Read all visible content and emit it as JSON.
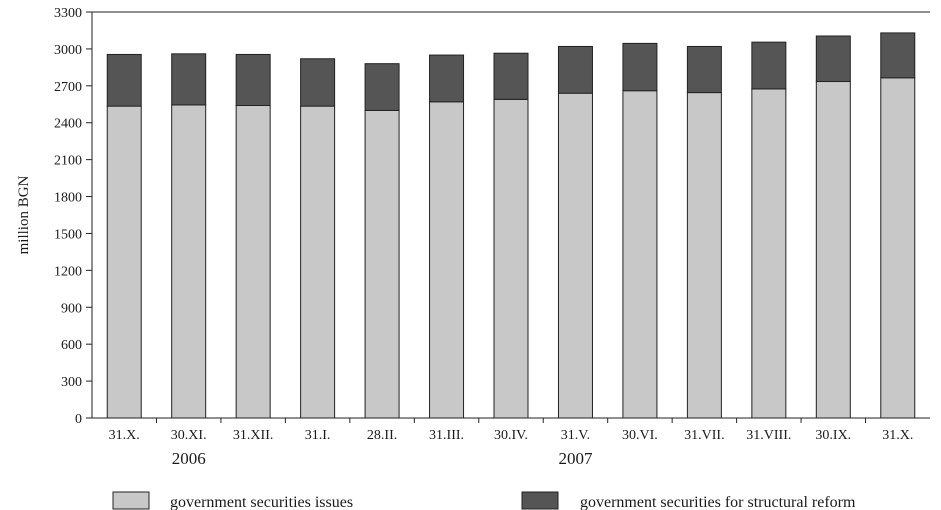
{
  "chart_data": {
    "type": "bar",
    "stacked": true,
    "title": "",
    "xlabel": "",
    "ylabel": "million BGN",
    "ylim": [
      0,
      3300
    ],
    "yticks": [
      0,
      300,
      600,
      900,
      1200,
      1500,
      1800,
      2100,
      2400,
      2700,
      3000,
      3300
    ],
    "categories": [
      "31.X.",
      "30.XI.",
      "31.XII.",
      "31.I.",
      "28.II.",
      "31.III.",
      "30.IV.",
      "31.V.",
      "30.VI.",
      "31.VII.",
      "31.VIII.",
      "30.IX.",
      "31.X."
    ],
    "year_labels": [
      {
        "label": "2006",
        "category_index": 1
      },
      {
        "label": "2007",
        "category_index": 7
      }
    ],
    "grid": false,
    "legend_position": "bottom",
    "series": [
      {
        "name": "government securities issues",
        "color": "#c8c8c8",
        "values": [
          2535,
          2545,
          2540,
          2535,
          2500,
          2570,
          2590,
          2640,
          2660,
          2645,
          2675,
          2735,
          2765
        ]
      },
      {
        "name": "government securities for structural reform",
        "color": "#555555",
        "values": [
          420,
          415,
          415,
          385,
          380,
          380,
          375,
          380,
          385,
          375,
          380,
          370,
          365
        ]
      }
    ]
  }
}
